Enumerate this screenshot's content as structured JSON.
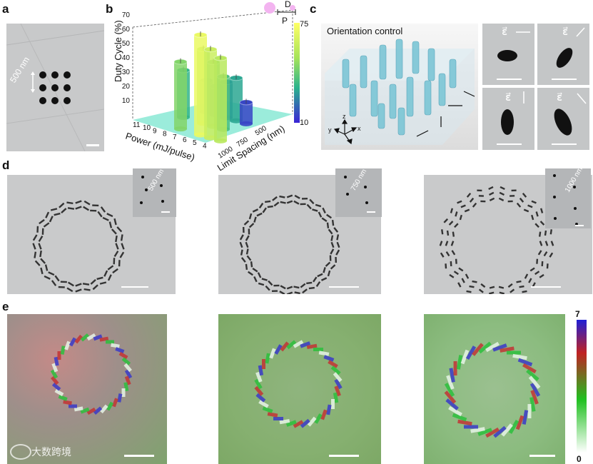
{
  "panels": {
    "a": {
      "letter": "a",
      "scale_label": "500 nm"
    },
    "b": {
      "letter": "b",
      "zlabel": "Duty Cycle (%)",
      "xlabel": "Power (mJ/pulse)",
      "ylabel": "Limit Spacing (nm)",
      "inset_D": "D",
      "inset_P": "P",
      "colorbar_max": "75",
      "colorbar_min": "10"
    },
    "c": {
      "letter": "c",
      "title": "Orientation control",
      "polarization_symbol": "ε⃗",
      "axes": {
        "x": "x",
        "y": "y",
        "z": "z"
      }
    },
    "d": {
      "letter": "d",
      "insets": [
        {
          "label": "500 nm"
        },
        {
          "label": "750 nm"
        },
        {
          "label": "1000 nm"
        }
      ]
    },
    "e": {
      "letter": "e",
      "colorbar_max": "7",
      "colorbar_min": "0",
      "watermark": "大数跨境"
    }
  },
  "chart_data": {
    "type": "bar3d",
    "title": "",
    "zlabel": "Duty Cycle (%)",
    "xlabel": "Power (mJ/pulse)",
    "ylabel": "Limit Spacing (nm)",
    "power_ticks": [
      "11",
      "10",
      "9",
      "8",
      "7",
      "6",
      "5",
      "4"
    ],
    "spacing_ticks": [
      "1000",
      "750",
      "500"
    ],
    "z_ticks": [
      "10",
      "20",
      "30",
      "40",
      "50",
      "60",
      "70"
    ],
    "zlim": [
      0,
      75
    ],
    "colorbar": [
      10,
      75
    ],
    "bars": [
      {
        "power": 8,
        "spacing": 500,
        "duty": 47
      },
      {
        "power": 6,
        "spacing": 500,
        "duty": 70
      },
      {
        "power": 5,
        "spacing": 500,
        "duty": 62
      },
      {
        "power": 4,
        "spacing": 500,
        "duty": 58
      },
      {
        "power": 9,
        "spacing": 750,
        "duty": 33
      },
      {
        "power": 7,
        "spacing": 750,
        "duty": 52
      },
      {
        "power": 6,
        "spacing": 750,
        "duty": 45
      },
      {
        "power": 5,
        "spacing": 750,
        "duty": 37
      },
      {
        "power": 8,
        "spacing": 1000,
        "duty": 22
      },
      {
        "power": 7,
        "spacing": 1000,
        "duty": 20
      },
      {
        "power": 6,
        "spacing": 1000,
        "duty": 25
      },
      {
        "power": 5,
        "spacing": 1000,
        "duty": 30
      },
      {
        "power": 4,
        "spacing": 1000,
        "duty": 15
      }
    ]
  }
}
